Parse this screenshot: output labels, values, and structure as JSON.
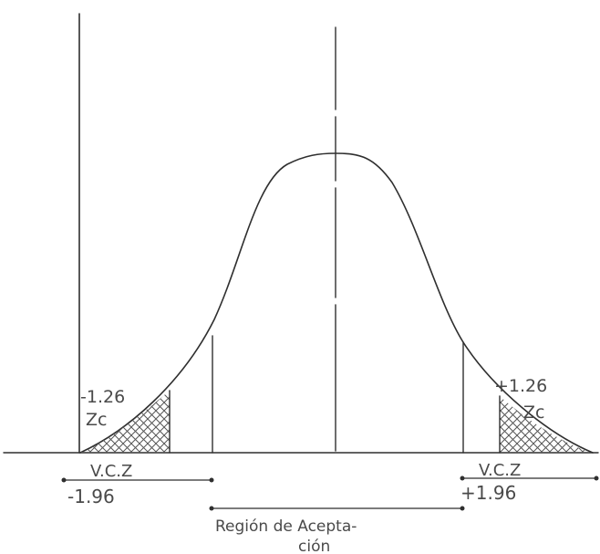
{
  "labels": {
    "left_z": "-1.26",
    "left_zc": "Zc",
    "right_z": "+1.26",
    "right_zc": "Zc",
    "left_vcz": "V.C.Z",
    "left_critical": "-1.96",
    "right_vcz": "V.C.Z",
    "right_critical": "+1.96",
    "acceptance_line1": "Región de Acepta-",
    "acceptance_line2": "ción"
  },
  "colors": {
    "ink": "#2f2f2f",
    "text": "#4a4a4a",
    "hatch": "#555555",
    "background": "#ffffff"
  }
}
